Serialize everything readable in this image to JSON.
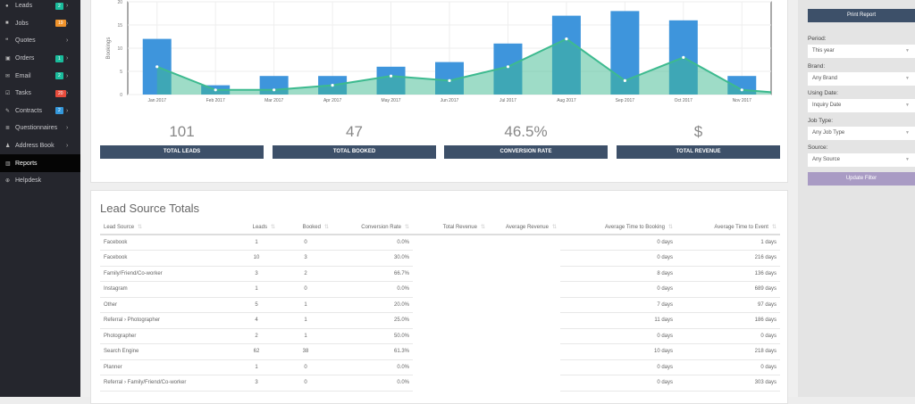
{
  "sidebar": {
    "items": [
      {
        "label": "Leads",
        "icon": "comments-icon",
        "badge": "2",
        "badge_color": "#1abc9c"
      },
      {
        "label": "Jobs",
        "icon": "briefcase-icon",
        "badge": "19",
        "badge_color": "#f0932b"
      },
      {
        "label": "Quotes",
        "icon": "quote-icon",
        "badge": null
      },
      {
        "label": "Orders",
        "icon": "copy-icon",
        "badge": "1",
        "badge_color": "#1abc9c"
      },
      {
        "label": "Email",
        "icon": "envelope-icon",
        "badge": "2",
        "badge_color": "#1abc9c"
      },
      {
        "label": "Tasks",
        "icon": "checkbox-icon",
        "badge": "20",
        "badge_color": "#e74c3c"
      },
      {
        "label": "Contracts",
        "icon": "pencil-icon",
        "badge": "2",
        "badge_color": "#3498db"
      },
      {
        "label": "Questionnaires",
        "icon": "list-icon",
        "badge": null
      },
      {
        "label": "Address Book",
        "icon": "users-icon",
        "badge": null
      },
      {
        "label": "Reports",
        "icon": "chart-icon",
        "badge": null,
        "active": true
      },
      {
        "label": "Helpdesk",
        "icon": "lifebuoy-icon",
        "badge": null
      }
    ]
  },
  "chart_data": {
    "type": "bar+area",
    "ylabel": "Bookings",
    "ylim": [
      0,
      20
    ],
    "yticks": [
      0,
      5,
      10,
      15,
      20
    ],
    "categories": [
      "Jan 2017",
      "Feb 2017",
      "Mar 2017",
      "Apr 2017",
      "May 2017",
      "Jun 2017",
      "Jul 2017",
      "Aug 2017",
      "Sep 2017",
      "Oct 2017",
      "Nov 2017"
    ],
    "series": [
      {
        "type": "bar",
        "color": "#3e95dc",
        "values": [
          12,
          2,
          4,
          4,
          6,
          7,
          11,
          17,
          18,
          16,
          4
        ]
      },
      {
        "type": "area",
        "color": "#3dba8f",
        "values": [
          6,
          1,
          1,
          2,
          4,
          3,
          6,
          12,
          3,
          8,
          1
        ],
        "end_value": 0.5
      }
    ]
  },
  "kpis": [
    {
      "value": "101",
      "label": "TOTAL LEADS"
    },
    {
      "value": "47",
      "label": "TOTAL BOOKED"
    },
    {
      "value": "46.5%",
      "label": "CONVERSION RATE"
    },
    {
      "value": "$",
      "label": "TOTAL REVENUE"
    }
  ],
  "table": {
    "title": "Lead Source Totals",
    "columns": [
      "Lead Source",
      "Leads",
      "Booked",
      "Conversion Rate",
      "Total Revenue",
      "Average Revenue",
      "Average Time to Booking",
      "Average Time to Event"
    ],
    "rows": [
      [
        "Facebook",
        "1",
        "0",
        "0.0%",
        "",
        "",
        "0 days",
        "1 days"
      ],
      [
        "Facebook",
        "10",
        "3",
        "30.0%",
        "",
        "",
        "0 days",
        "216 days"
      ],
      [
        "Family/Friend/Co-worker",
        "3",
        "2",
        "66.7%",
        "",
        "",
        "8 days",
        "136 days"
      ],
      [
        "Instagram",
        "1",
        "0",
        "0.0%",
        "",
        "",
        "0 days",
        "689 days"
      ],
      [
        "Other",
        "5",
        "1",
        "20.0%",
        "",
        "",
        "7 days",
        "97 days"
      ],
      [
        " Referral › Photographer",
        "4",
        "1",
        "25.0%",
        "",
        "",
        "11 days",
        "186 days"
      ],
      [
        "Photographer",
        "2",
        "1",
        "50.0%",
        "",
        "",
        "0 days",
        "0 days"
      ],
      [
        "Search Engine",
        "62",
        "38",
        "61.3%",
        "",
        "",
        "10 days",
        "218 days"
      ],
      [
        "Planner",
        "1",
        "0",
        "0.0%",
        "",
        "",
        "0 days",
        "0 days"
      ],
      [
        "Referral › Family/Friend/Co-worker",
        "3",
        "0",
        "0.0%",
        "",
        "",
        "0 days",
        "303 days"
      ]
    ]
  },
  "filters": {
    "print_label": "Print Report",
    "update_label": "Update Filter",
    "fields": [
      {
        "label": "Period:",
        "value": "This year"
      },
      {
        "label": "Brand:",
        "value": "Any Brand"
      },
      {
        "label": "Using Date:",
        "value": "Inquiry Date"
      },
      {
        "label": "Job Type:",
        "value": "Any Job Type"
      },
      {
        "label": "Source:",
        "value": "Any Source"
      }
    ]
  }
}
